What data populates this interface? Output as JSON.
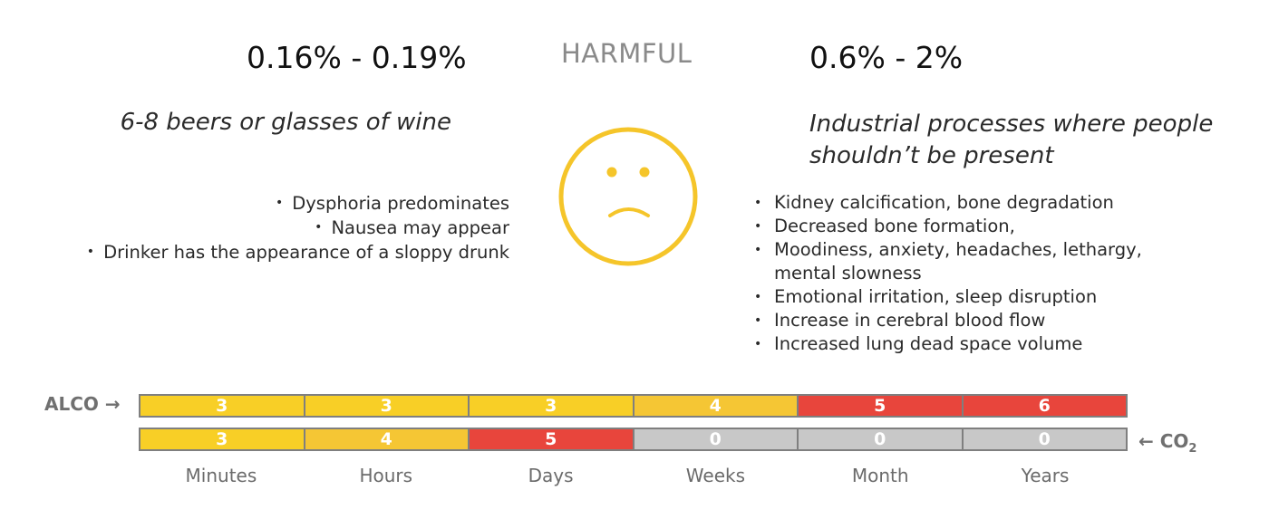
{
  "header": {
    "left_range": "0.16% - 0.19%",
    "status": "HARMFUL",
    "right_range": "0.6% - 2%"
  },
  "alcohol": {
    "description": "6-8 beers or glasses of wine",
    "effects": [
      "Dysphoria predominates",
      "Nausea may appear",
      "Drinker has the appearance of a sloppy drunk"
    ]
  },
  "co2": {
    "description": "Industrial processes where people shouldn’t be present",
    "effects": [
      "Kidney calcification, bone degradation",
      "Decreased bone formation,",
      "Moodiness, anxiety, headaches, lethargy, mental slowness",
      "Emotional irritation, sleep disruption",
      "Increase in cerebral blood flow",
      "Increased lung dead space volume"
    ]
  },
  "face": {
    "icon": "sad-face-icon",
    "color": "#f5c52a"
  },
  "scale": {
    "alco_label": "ALCO",
    "co2_label": "CO",
    "co2_subscript": "2",
    "alco_levels": [
      "3",
      "3",
      "3",
      "4",
      "5",
      "6"
    ],
    "co2_levels": [
      "3",
      "4",
      "5",
      "0",
      "0",
      "0"
    ],
    "time_labels": [
      "Minutes",
      "Hours",
      "Days",
      "Weeks",
      "Month",
      "Years"
    ],
    "colors": {
      "low": "#f8cf26",
      "mid": "#f5c634",
      "high": "#e8453c",
      "none": "#c8c8c8"
    }
  }
}
